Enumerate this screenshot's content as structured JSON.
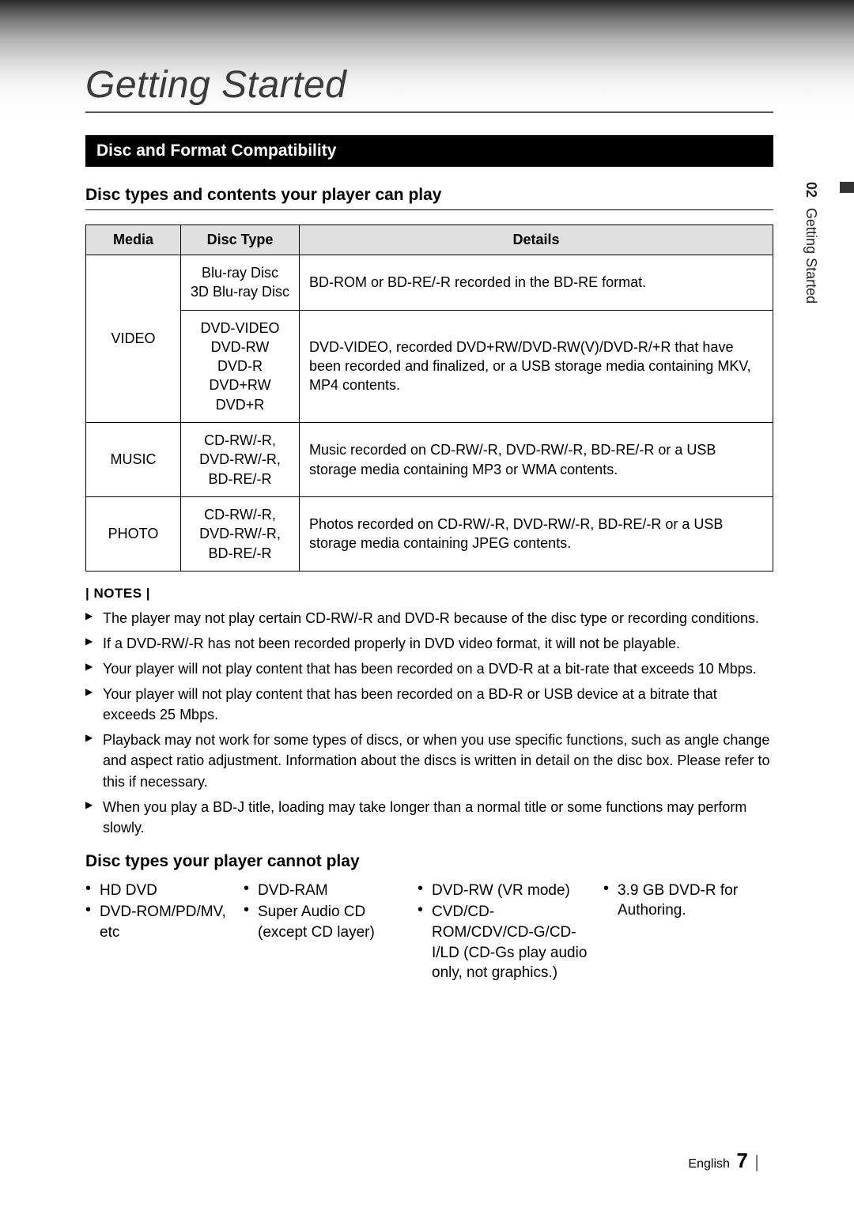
{
  "chapter_title": "Getting Started",
  "side_tab": {
    "number": "02",
    "label": "Getting Started"
  },
  "section_bar": "Disc and Format Compatibility",
  "subheading_can_play": "Disc types and contents your player can play",
  "table": {
    "headers": {
      "media": "Media",
      "disctype": "Disc Type",
      "details": "Details"
    },
    "rows": [
      {
        "media": "VIDEO",
        "subrows": [
          {
            "disctype": "Blu-ray Disc\n3D Blu-ray Disc",
            "details": "BD-ROM or BD-RE/-R recorded in the BD-RE format."
          },
          {
            "disctype": "DVD-VIDEO\nDVD-RW\nDVD-R\nDVD+RW\nDVD+R",
            "details": "DVD-VIDEO, recorded DVD+RW/DVD-RW(V)/DVD-R/+R that have been recorded and finalized, or a USB storage media containing MKV, MP4 contents."
          }
        ]
      },
      {
        "media": "MUSIC",
        "subrows": [
          {
            "disctype": "CD-RW/-R,\nDVD-RW/-R,\nBD-RE/-R",
            "details": "Music recorded on CD-RW/-R, DVD-RW/-R, BD-RE/-R or a USB storage media containing MP3 or WMA contents."
          }
        ]
      },
      {
        "media": "PHOTO",
        "subrows": [
          {
            "disctype": "CD-RW/-R,\nDVD-RW/-R,\nBD-RE/-R",
            "details": "Photos recorded on CD-RW/-R, DVD-RW/-R, BD-RE/-R or a USB storage media containing JPEG contents."
          }
        ]
      }
    ]
  },
  "notes_label": "| NOTES |",
  "notes": [
    "The player may not play certain CD-RW/-R and DVD-R because of the disc type or recording conditions.",
    "If a DVD-RW/-R has not been recorded properly in DVD video format, it will not be playable.",
    "Your player will not play content that has been recorded on a DVD-R at a bit-rate that exceeds 10 Mbps.",
    "Your player will not play content that has been recorded on a BD-R or USB device at a bitrate that exceeds 25 Mbps.",
    "Playback may not work for some types of discs, or when you use specific functions, such as angle change and aspect ratio adjustment. Information about the discs is written in detail on the disc box. Please refer to this if necessary.",
    "When you play a BD-J title, loading may take longer than a normal title or some functions may perform slowly."
  ],
  "subheading_cannot_play": "Disc types your player cannot play",
  "cannot_play_columns": [
    [
      "HD DVD",
      "DVD-ROM/PD/MV, etc"
    ],
    [
      "DVD-RAM",
      "Super Audio CD (except CD layer)"
    ],
    [
      "DVD-RW (VR mode)",
      "CVD/CD-ROM/CDV/CD-G/CD-I/LD (CD-Gs play audio only, not graphics.)"
    ],
    [
      "3.9 GB DVD-R for Authoring."
    ]
  ],
  "footer": {
    "lang": "English",
    "page": "7"
  },
  "colors": {
    "section_bar_bg": "#000000",
    "section_bar_fg": "#ffffff",
    "table_header_bg": "#e0e0e0",
    "border": "#000000",
    "text": "#000000",
    "title_color": "#3b3b3b"
  }
}
